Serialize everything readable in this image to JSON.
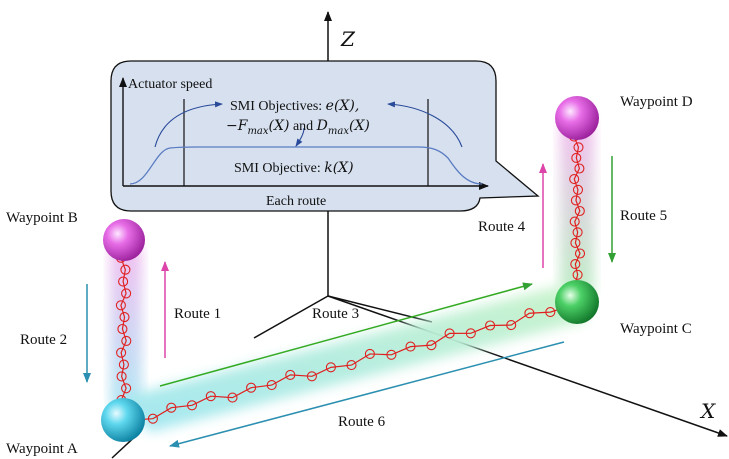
{
  "axes": {
    "x": "X",
    "z": "Z"
  },
  "waypoints": {
    "a": "Waypoint A",
    "b": "Waypoint B",
    "c": "Waypoint C",
    "d": "Waypoint D"
  },
  "routes": {
    "r1": "Route 1",
    "r2": "Route 2",
    "r3": "Route 3",
    "r4": "Route 4",
    "r5": "Route 5",
    "r6": "Route 6"
  },
  "callout": {
    "y_label": "Actuator speed",
    "x_label": "Each route",
    "upper_text": "SMI Objectives: ",
    "upper_math_1": "e(X),",
    "upper_math_2": "−F",
    "upper_sub_1": "max",
    "upper_math_3": "(X)",
    "upper_and": " and ",
    "upper_math_4": "D",
    "upper_sub_2": "max",
    "upper_math_5": "(X)",
    "lower_text": "SMI Objective: ",
    "lower_math": "k(X)"
  },
  "colors": {
    "callout_fill": "#d6e0ef",
    "chain": "#e02020",
    "route1_arrow": "#dd44aa",
    "route2_arrow": "#2a8fb0",
    "route4_arrow": "#dd44aa",
    "route5_arrow": "#33a033",
    "route3_arrow": "#33aa22",
    "route6_arrow": "#2a8fb0",
    "sphere_a": "#22c8e0",
    "sphere_b": "#e040e0",
    "sphere_c": "#28b844",
    "sphere_d": "#e040e0"
  }
}
